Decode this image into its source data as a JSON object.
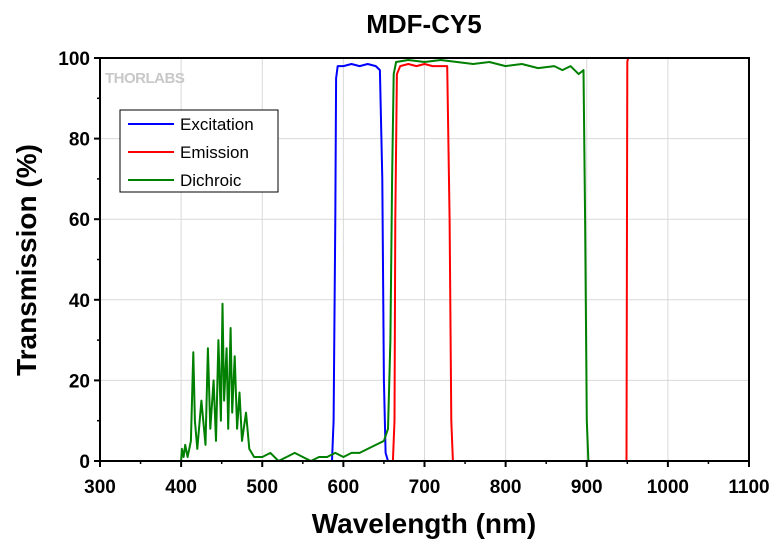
{
  "chart_data": {
    "type": "line",
    "title": "MDF-CY5",
    "xlabel": "Wavelength (nm)",
    "ylabel": "Transmission (%)",
    "xlim": [
      300,
      1100
    ],
    "ylim": [
      0,
      100
    ],
    "xticks": [
      300,
      400,
      500,
      600,
      700,
      800,
      900,
      1000,
      1100
    ],
    "yticks": [
      0,
      20,
      40,
      60,
      80,
      100
    ],
    "grid": true,
    "legend_position": "top-left",
    "logo_text": "THORLABS",
    "series": [
      {
        "name": "Excitation",
        "color": "#0000ff",
        "points": [
          [
            300,
            0
          ],
          [
            586,
            0
          ],
          [
            588,
            10
          ],
          [
            590,
            60
          ],
          [
            591,
            95
          ],
          [
            593,
            98
          ],
          [
            600,
            98
          ],
          [
            610,
            98.5
          ],
          [
            620,
            98
          ],
          [
            630,
            98.5
          ],
          [
            640,
            98
          ],
          [
            645,
            97
          ],
          [
            648,
            70
          ],
          [
            650,
            20
          ],
          [
            652,
            2
          ],
          [
            655,
            0
          ],
          [
            1100,
            0
          ]
        ]
      },
      {
        "name": "Emission",
        "color": "#ff0000",
        "points": [
          [
            300,
            0
          ],
          [
            661,
            0
          ],
          [
            663,
            10
          ],
          [
            664,
            60
          ],
          [
            666,
            96
          ],
          [
            670,
            98
          ],
          [
            680,
            98.5
          ],
          [
            690,
            98
          ],
          [
            700,
            98.5
          ],
          [
            710,
            98
          ],
          [
            720,
            98
          ],
          [
            728,
            98
          ],
          [
            731,
            60
          ],
          [
            733,
            10
          ],
          [
            735,
            0
          ],
          [
            949,
            0
          ],
          [
            950,
            99
          ],
          [
            951,
            100
          ],
          [
            1100,
            100
          ]
        ]
      },
      {
        "name": "Dichroic",
        "color": "#008000",
        "points": [
          [
            300,
            0
          ],
          [
            400,
            0
          ],
          [
            401,
            3
          ],
          [
            403,
            1
          ],
          [
            405,
            4
          ],
          [
            408,
            1
          ],
          [
            412,
            5
          ],
          [
            415,
            27
          ],
          [
            417,
            10
          ],
          [
            420,
            3
          ],
          [
            425,
            15
          ],
          [
            430,
            4
          ],
          [
            433,
            28
          ],
          [
            436,
            8
          ],
          [
            440,
            20
          ],
          [
            443,
            5
          ],
          [
            446,
            30
          ],
          [
            449,
            10
          ],
          [
            451,
            39
          ],
          [
            453,
            15
          ],
          [
            456,
            28
          ],
          [
            458,
            8
          ],
          [
            461,
            33
          ],
          [
            463,
            12
          ],
          [
            466,
            26
          ],
          [
            469,
            8
          ],
          [
            472,
            17
          ],
          [
            475,
            5
          ],
          [
            480,
            12
          ],
          [
            484,
            3
          ],
          [
            490,
            1
          ],
          [
            500,
            1
          ],
          [
            510,
            2
          ],
          [
            520,
            0
          ],
          [
            530,
            1
          ],
          [
            540,
            2
          ],
          [
            550,
            1
          ],
          [
            560,
            0
          ],
          [
            570,
            1
          ],
          [
            580,
            1
          ],
          [
            590,
            2
          ],
          [
            600,
            1
          ],
          [
            610,
            2
          ],
          [
            620,
            2
          ],
          [
            630,
            3
          ],
          [
            640,
            4
          ],
          [
            650,
            5
          ],
          [
            655,
            8
          ],
          [
            658,
            30
          ],
          [
            660,
            70
          ],
          [
            662,
            96
          ],
          [
            665,
            99
          ],
          [
            680,
            99.5
          ],
          [
            700,
            99
          ],
          [
            720,
            99.5
          ],
          [
            740,
            99
          ],
          [
            760,
            98.5
          ],
          [
            780,
            99
          ],
          [
            800,
            98
          ],
          [
            820,
            98.5
          ],
          [
            840,
            97.5
          ],
          [
            860,
            98
          ],
          [
            870,
            97
          ],
          [
            880,
            98
          ],
          [
            890,
            96
          ],
          [
            896,
            97
          ],
          [
            898,
            60
          ],
          [
            900,
            10
          ],
          [
            902,
            0
          ],
          [
            1100,
            0
          ]
        ]
      }
    ]
  }
}
